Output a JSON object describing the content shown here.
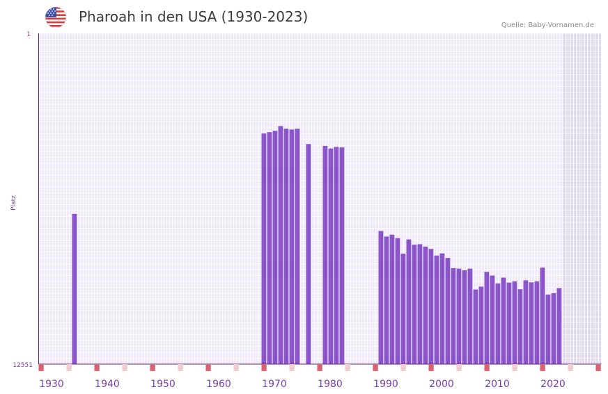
{
  "header": {
    "title": "Pharoah in den USA (1930-2023)",
    "source": "Quelle: Baby-Vornamen.de",
    "flag_icon": "usa-flag-icon"
  },
  "colors": {
    "bar": "#8a55c6",
    "plot_bg": "#efe9f8",
    "future_bg": "#e2dcec",
    "axis": "#6a1f7a",
    "decade_marker": "#d6636f",
    "minor_marker": "#f0cdd3",
    "tick_text": "#7a3fa8"
  },
  "chart_data": {
    "type": "bar",
    "title": "Pharoah in den USA (1930-2023)",
    "xlabel": "",
    "ylabel": "Platz",
    "y_top_label": "1",
    "y_bottom_label": "12551",
    "ylim": [
      12551,
      1
    ],
    "xlim": [
      1928,
      2029
    ],
    "x_ticks": [
      1930,
      1940,
      1950,
      1960,
      1970,
      1980,
      1990,
      2000,
      2010,
      2020
    ],
    "x": [
      1934,
      1968,
      1969,
      1970,
      1971,
      1972,
      1973,
      1974,
      1976,
      1979,
      1980,
      1981,
      1982,
      1989,
      1990,
      1991,
      1992,
      1993,
      1994,
      1995,
      1996,
      1997,
      1998,
      1999,
      2000,
      2001,
      2002,
      2003,
      2004,
      2005,
      2006,
      2007,
      2008,
      2009,
      2010,
      2011,
      2012,
      2013,
      2014,
      2015,
      2016,
      2017,
      2018,
      2019,
      2020,
      2021
    ],
    "values": [
      6850,
      3800,
      3750,
      3700,
      3520,
      3620,
      3650,
      3620,
      4200,
      4270,
      4370,
      4310,
      4330,
      7500,
      7710,
      7640,
      7770,
      8360,
      7820,
      8020,
      8000,
      8090,
      8180,
      8430,
      8350,
      8520,
      8910,
      8930,
      8990,
      8930,
      9720,
      9610,
      9050,
      9190,
      9490,
      9270,
      9460,
      9410,
      9710,
      9370,
      9450,
      9410,
      8890,
      9910,
      9860,
      9670
    ]
  }
}
